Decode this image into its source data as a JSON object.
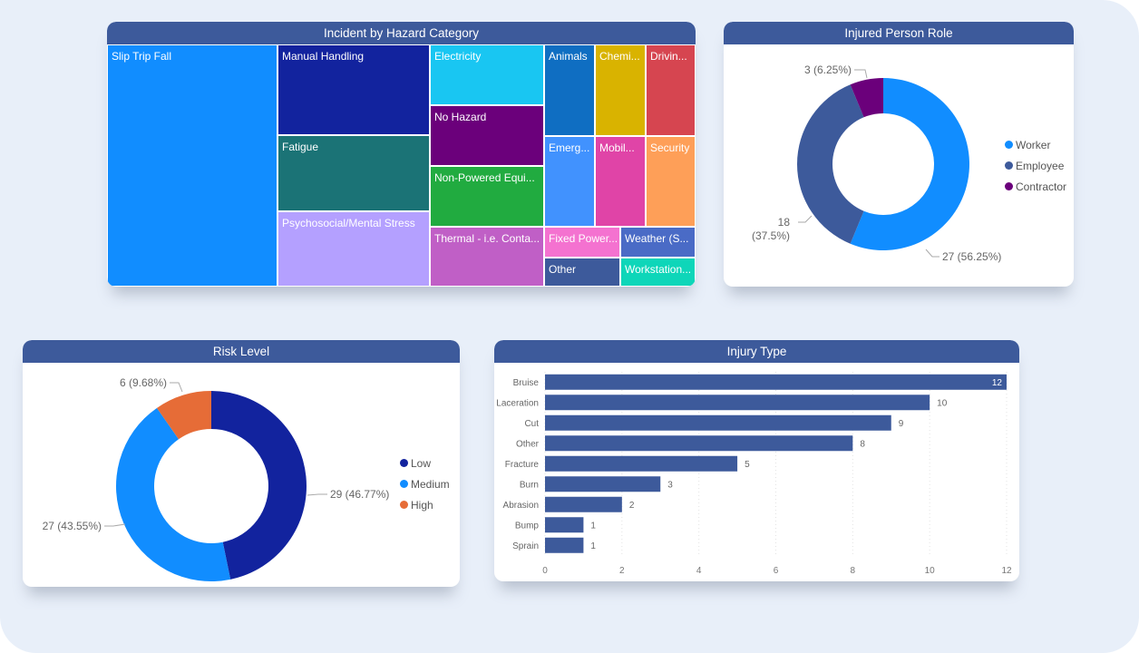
{
  "theme": {
    "header": "#3d5a9b",
    "background": "#e8eff9",
    "bar": "#3d5a9b"
  },
  "chart_data": [
    {
      "id": "hazard",
      "type": "treemap",
      "title": "Incident by Hazard Category",
      "items": [
        {
          "label": "Slip Trip Fall",
          "color": "#118dff"
        },
        {
          "label": "Manual Handling",
          "color": "#12239e"
        },
        {
          "label": "Fatigue",
          "color": "#1b7376"
        },
        {
          "label": "Psychosocial/Mental Stress",
          "color": "#b4a0ff"
        },
        {
          "label": "Electricity",
          "color": "#19c6f2"
        },
        {
          "label": "No Hazard",
          "color": "#6b007b"
        },
        {
          "label": "Non-Powered Equi...",
          "color": "#21ab40"
        },
        {
          "label": "Thermal - i.e. Conta...",
          "color": "#c05fc6"
        },
        {
          "label": "Animals",
          "color": "#0f6ec2"
        },
        {
          "label": "Chemi...",
          "color": "#d9b300"
        },
        {
          "label": "Drivin...",
          "color": "#d64550"
        },
        {
          "label": "Emerg...",
          "color": "#4192fe"
        },
        {
          "label": "Mobil...",
          "color": "#e044a7"
        },
        {
          "label": "Security",
          "color": "#fe9f58"
        },
        {
          "label": "Fixed Power...",
          "color": "#f472d0"
        },
        {
          "label": "Weather (S...",
          "color": "#4a6bc6"
        },
        {
          "label": "Other",
          "color": "#3d5a9b"
        },
        {
          "label": "Workstation...",
          "color": "#0ed6b9"
        }
      ]
    },
    {
      "id": "role",
      "type": "pie",
      "donut": true,
      "title": "Injured Person Role",
      "legend_position": "right",
      "slices": [
        {
          "label": "Worker",
          "value": 27,
          "pct": "56.25%",
          "color": "#118dff",
          "data_label": "27 (56.25%)"
        },
        {
          "label": "Employee",
          "value": 18,
          "pct": "37.5%",
          "color": "#3d5a9b",
          "data_label_line1": "18",
          "data_label_line2": "(37.5%)"
        },
        {
          "label": "Contractor",
          "value": 3,
          "pct": "6.25%",
          "color": "#6b007b",
          "data_label": "3 (6.25%)"
        }
      ]
    },
    {
      "id": "risk",
      "type": "pie",
      "donut": true,
      "title": "Risk Level",
      "legend_position": "right",
      "slices": [
        {
          "label": "Low",
          "value": 29,
          "pct": "46.77%",
          "color": "#12239e",
          "data_label": "29 (46.77%)"
        },
        {
          "label": "Medium",
          "value": 27,
          "pct": "43.55%",
          "color": "#118dff",
          "data_label": "27 (43.55%)"
        },
        {
          "label": "High",
          "value": 6,
          "pct": "9.68%",
          "color": "#e66c37",
          "data_label": "6 (9.68%)"
        }
      ]
    },
    {
      "id": "injury",
      "type": "bar",
      "orientation": "horizontal",
      "title": "Injury Type",
      "categories": [
        "Bruise",
        "Laceration",
        "Cut",
        "Other",
        "Fracture",
        "Burn",
        "Abrasion",
        "Bump",
        "Sprain"
      ],
      "values": [
        12,
        10,
        9,
        8,
        5,
        3,
        2,
        1,
        1
      ],
      "xlim": [
        0,
        12
      ],
      "xticks": [
        "0",
        "2",
        "4",
        "6",
        "8",
        "10",
        "12"
      ],
      "grid": true,
      "xlabel": "",
      "ylabel": ""
    }
  ]
}
